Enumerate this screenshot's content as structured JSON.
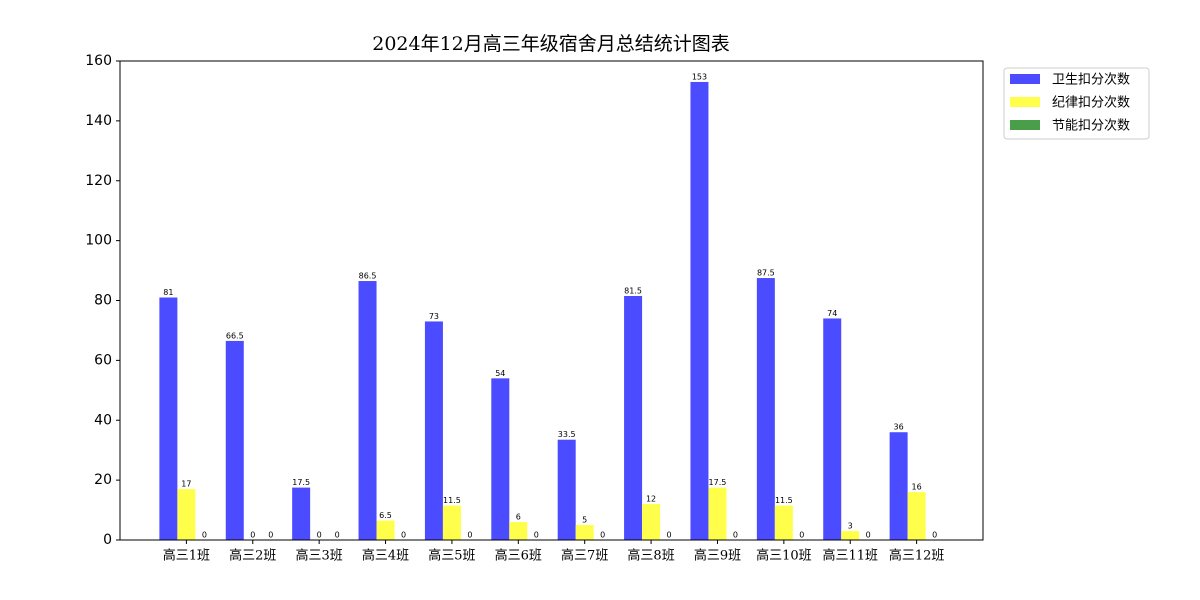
{
  "chart_data": {
    "type": "bar",
    "title": "2024年12月高三年级宿舍月总结统计图表",
    "categories": [
      "高三1班",
      "高三2班",
      "高三3班",
      "高三4班",
      "高三5班",
      "高三6班",
      "高三7班",
      "高三8班",
      "高三9班",
      "高三10班",
      "高三11班",
      "高三12班"
    ],
    "series": [
      {
        "name": "卫生扣分次数",
        "color": "#4b4bff",
        "values": [
          81,
          66.5,
          17.5,
          86.5,
          73,
          54,
          33.5,
          81.5,
          153,
          87.5,
          74,
          36
        ]
      },
      {
        "name": "纪律扣分次数",
        "color": "#ffff4b",
        "values": [
          17,
          0,
          0,
          6.5,
          11.5,
          6,
          5,
          12,
          17.5,
          11.5,
          3,
          16
        ]
      },
      {
        "name": "节能扣分次数",
        "color": "#4a9e4a",
        "values": [
          0,
          0,
          0,
          0,
          0,
          0,
          0,
          0,
          0,
          0,
          0,
          0
        ]
      }
    ],
    "ylim": [
      0,
      160
    ],
    "yticks": [
      0,
      20,
      40,
      60,
      80,
      100,
      120,
      140,
      160
    ],
    "legend": "outside-upper-right",
    "grid": false
  }
}
